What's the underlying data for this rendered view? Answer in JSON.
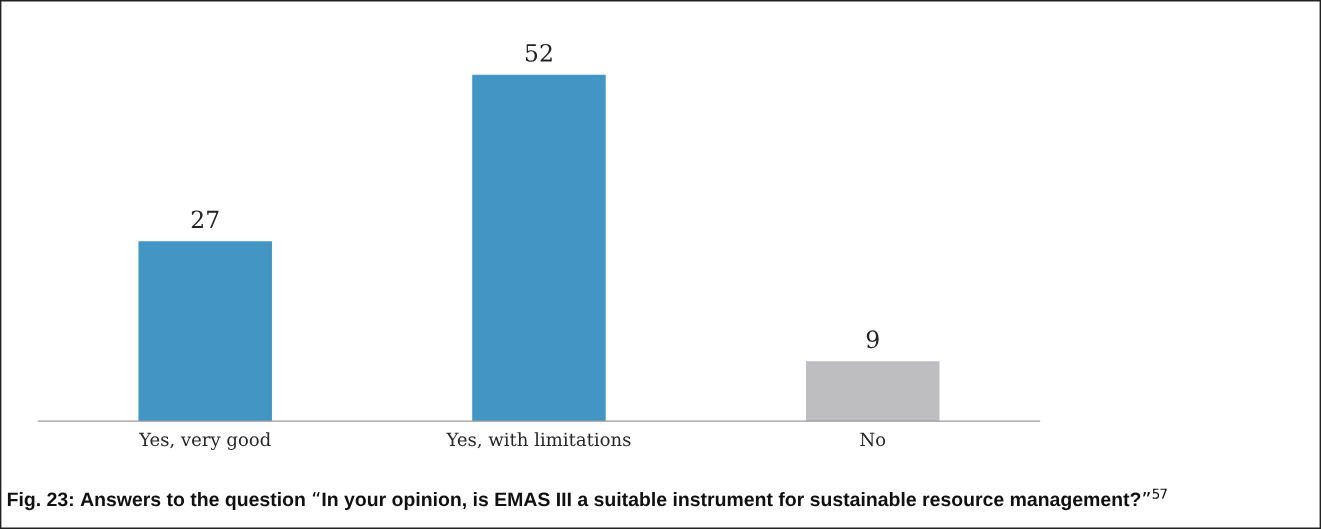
{
  "chart_data": {
    "type": "bar",
    "title": "Fig. 23: Answers to the question “In your opinion, is EMAS III a suitable instrument for sustainable resource management?”$^{57}$",
    "categories": [
      "Yes, very good",
      "Yes, with limitations",
      "No"
    ],
    "values": [
      27,
      52,
      9
    ],
    "colors": [
      "#4396c4",
      "#4396c4",
      "#bebec0"
    ],
    "data_labels": true,
    "grid": false,
    "legend": false,
    "tick_labels": "x"
  }
}
